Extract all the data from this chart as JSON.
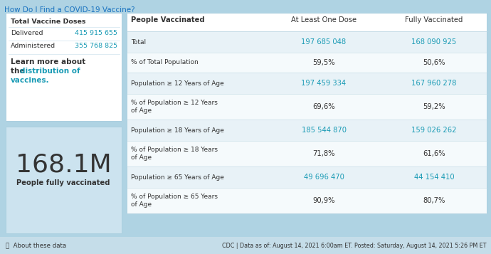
{
  "title": "How Do I Find a COVID-19 Vaccine?",
  "bg_color": "#afd3e3",
  "white": "#ffffff",
  "panel_light_blue": "#cce3ef",
  "teal_color": "#1a9bb5",
  "dark_text": "#333333",
  "row_even_color": "#e8f2f7",
  "row_odd_color": "#f5fafc",
  "left_panel": {
    "doses_title": "Total Vaccine Doses",
    "delivered_label": "Delivered",
    "delivered_value": "415 915 655",
    "administered_label": "Administered",
    "administered_value": "355 768 825",
    "learn_line1": "Learn more about",
    "learn_line2_plain": "the ",
    "learn_line2_link": "distribution of",
    "learn_line3_link": "vaccines.",
    "big_number": "168.1M",
    "big_number_sub": "People fully vaccinated"
  },
  "table": {
    "col_headers": [
      "People Vaccinated",
      "At Least One Dose",
      "Fully Vaccinated"
    ],
    "rows": [
      [
        "Total",
        "197 685 048",
        "168 090 925",
        false
      ],
      [
        "% of Total Population",
        "59,5%",
        "50,6%",
        true
      ],
      [
        "Population ≥ 12 Years of Age",
        "197 459 334",
        "167 960 278",
        false
      ],
      [
        "% of Population ≥ 12 Years\nof Age",
        "69,6%",
        "59,2%",
        true
      ],
      [
        "Population ≥ 18 Years of Age",
        "185 544 870",
        "159 026 262",
        false
      ],
      [
        "% of Population ≥ 18 Years\nof Age",
        "71,8%",
        "61,6%",
        true
      ],
      [
        "Population ≥ 65 Years of Age",
        "49 696 470",
        "44 154 410",
        false
      ],
      [
        "% of Population ≥ 65 Years\nof Age",
        "90,9%",
        "80,7%",
        true
      ]
    ]
  },
  "footer_left": "ⓘ  About these data",
  "footer_right": "CDC | Data as of: August 14, 2021 6:00am ET. Posted: Saturday, August 14, 2021 5:26 PM ET"
}
